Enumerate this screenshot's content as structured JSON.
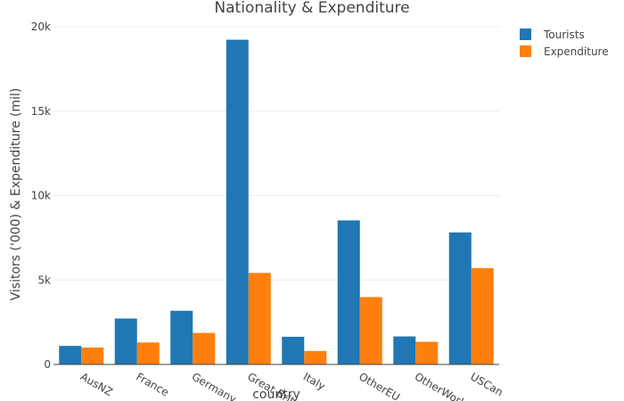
{
  "chart_data": {
    "type": "bar",
    "title": "Nationality & Expenditure",
    "xlabel": "country",
    "ylabel": "Visitors ('000) & Expenditure (mil)",
    "categories": [
      "AusNZ",
      "France",
      "Germany",
      "Great Brit.",
      "Italy",
      "OtherEU",
      "OtherWorld",
      "USCan"
    ],
    "series": [
      {
        "name": "Tourists",
        "color": "#1f77b4",
        "values": [
          1100,
          2720,
          3180,
          19230,
          1640,
          8530,
          1660,
          7820
        ]
      },
      {
        "name": "Expenditure",
        "color": "#ff7f0e",
        "values": [
          1000,
          1300,
          1870,
          5420,
          800,
          3990,
          1340,
          5700
        ]
      }
    ],
    "ylim": [
      0,
      20000
    ],
    "yticks": [
      0,
      5000,
      10000,
      15000,
      20000
    ],
    "ytick_labels": [
      "0",
      "5k",
      "10k",
      "15k",
      "20k"
    ],
    "grid": true,
    "legend_position": "top-right"
  }
}
